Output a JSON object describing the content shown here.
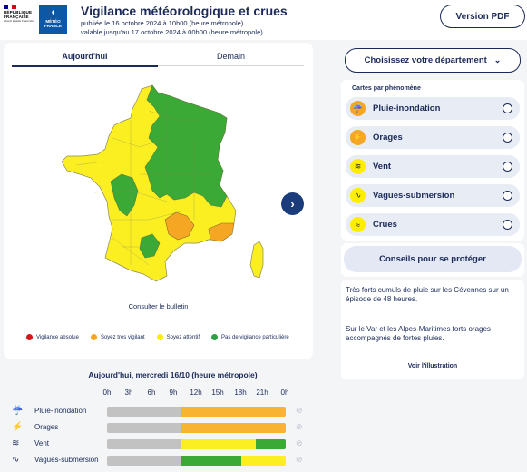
{
  "header": {
    "rf_logo_line1": "RÉPUBLIQUE",
    "rf_logo_line2": "FRANÇAISE",
    "rf_motto": "Liberté Égalité Fraternité",
    "mf_logo_line1": "MÉTÉO",
    "mf_logo_line2": "FRANCE",
    "title": "Vigilance météorologique et crues",
    "published": "publiée le 16 octobre 2024 à 10h00 (heure métropole)",
    "valid_until": "valable jusqu'au 17 octobre 2024 à 00h00 (heure métropole)",
    "pdf_button": "Version PDF"
  },
  "map": {
    "tabs": [
      "Aujourd'hui",
      "Demain"
    ],
    "consult_link": "Consulter le bulletin",
    "legend": [
      {
        "label": "Vigilance absolue",
        "color": "#d7141a"
      },
      {
        "label": "Soyez très vigilant",
        "color": "#f5a623"
      },
      {
        "label": "Soyez attentif",
        "color": "#ffee00"
      },
      {
        "label": "Pas de vigilance particulière",
        "color": "#2ea043"
      }
    ],
    "colors": {
      "green": "#3aa935",
      "yellow": "#fbef22",
      "orange": "#f5a623",
      "border": "#7a7a4a"
    }
  },
  "right": {
    "dept_button": "Choisissez votre département",
    "phen_title": "Cartes par phénomène",
    "phenomena": [
      {
        "label": "Pluie-inondation",
        "icon": "rain-flood-icon",
        "color": "#f5a623"
      },
      {
        "label": "Orages",
        "icon": "thunderstorm-icon",
        "color": "#f5a623"
      },
      {
        "label": "Vent",
        "icon": "wind-icon",
        "color": "#ffee00"
      },
      {
        "label": "Vagues-submersion",
        "icon": "waves-icon",
        "color": "#ffee00"
      },
      {
        "label": "Crues",
        "icon": "floods-icon",
        "color": "#ffee00"
      }
    ],
    "protect_button": "Conseils pour se protéger",
    "info_1": "Très forts cumuls de pluie sur les Cévennes sur un épisode de 48 heures.",
    "info_2": "Sur le Var et les Alpes-Maritimes forts orages accompagnés de fortes pluies.",
    "illustration_link": "Voir l'illustration"
  },
  "timeline": {
    "title": "Aujourd'hui, mercredi 16/10 (heure métropole)",
    "hours": [
      "0h",
      "3h",
      "6h",
      "9h",
      "12h",
      "15h",
      "18h",
      "21h",
      "0h"
    ],
    "colors": {
      "grey": "#c2c2c2",
      "orange": "#f8b330",
      "yellow": "#fbef22",
      "green": "#3aa935"
    },
    "rows": [
      {
        "label": "Pluie-inondation",
        "segments": [
          {
            "hours": 10,
            "color": "grey"
          },
          {
            "hours": 14,
            "color": "orange"
          }
        ]
      },
      {
        "label": "Orages",
        "segments": [
          {
            "hours": 10,
            "color": "grey"
          },
          {
            "hours": 14,
            "color": "orange"
          }
        ]
      },
      {
        "label": "Vent",
        "segments": [
          {
            "hours": 10,
            "color": "grey"
          },
          {
            "hours": 10,
            "color": "yellow"
          },
          {
            "hours": 4,
            "color": "green"
          }
        ]
      },
      {
        "label": "Vagues-submersion",
        "segments": [
          {
            "hours": 10,
            "color": "grey"
          },
          {
            "hours": 8,
            "color": "green"
          },
          {
            "hours": 6,
            "color": "yellow"
          }
        ]
      }
    ]
  }
}
